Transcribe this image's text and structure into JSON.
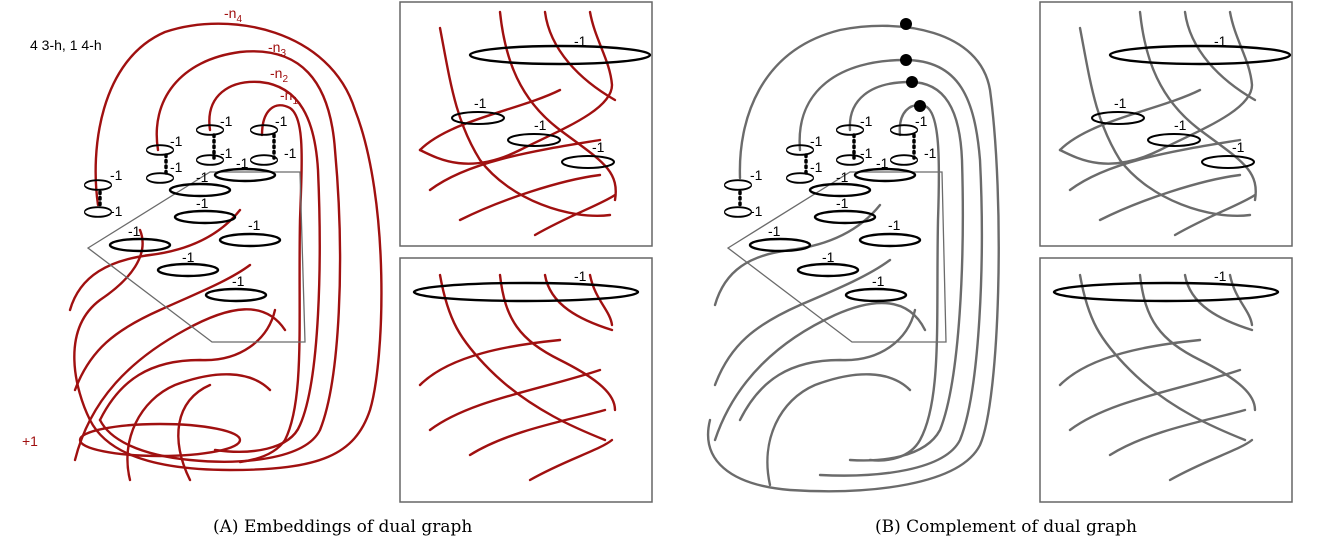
{
  "panel_a": {
    "annotation": "4 3-h, 1 4-h",
    "framing_n4": "-n",
    "framing_n4_sub": "4",
    "framing_n3": "-n",
    "framing_n3_sub": "3",
    "framing_n2": "-n",
    "framing_n2_sub": "2",
    "framing_n1": "-n",
    "framing_n1_sub": "1",
    "plus_one": "+1",
    "minus_one": "-1",
    "caption": "(A) Embeddings of dual graph"
  },
  "panel_b": {
    "minus_one": "-1",
    "caption": "(B) Complement of dual graph"
  },
  "colors": {
    "strand_a": "#a01010",
    "strand_b": "#6b6b6b",
    "unknot": "#000000",
    "box": "#666666"
  }
}
